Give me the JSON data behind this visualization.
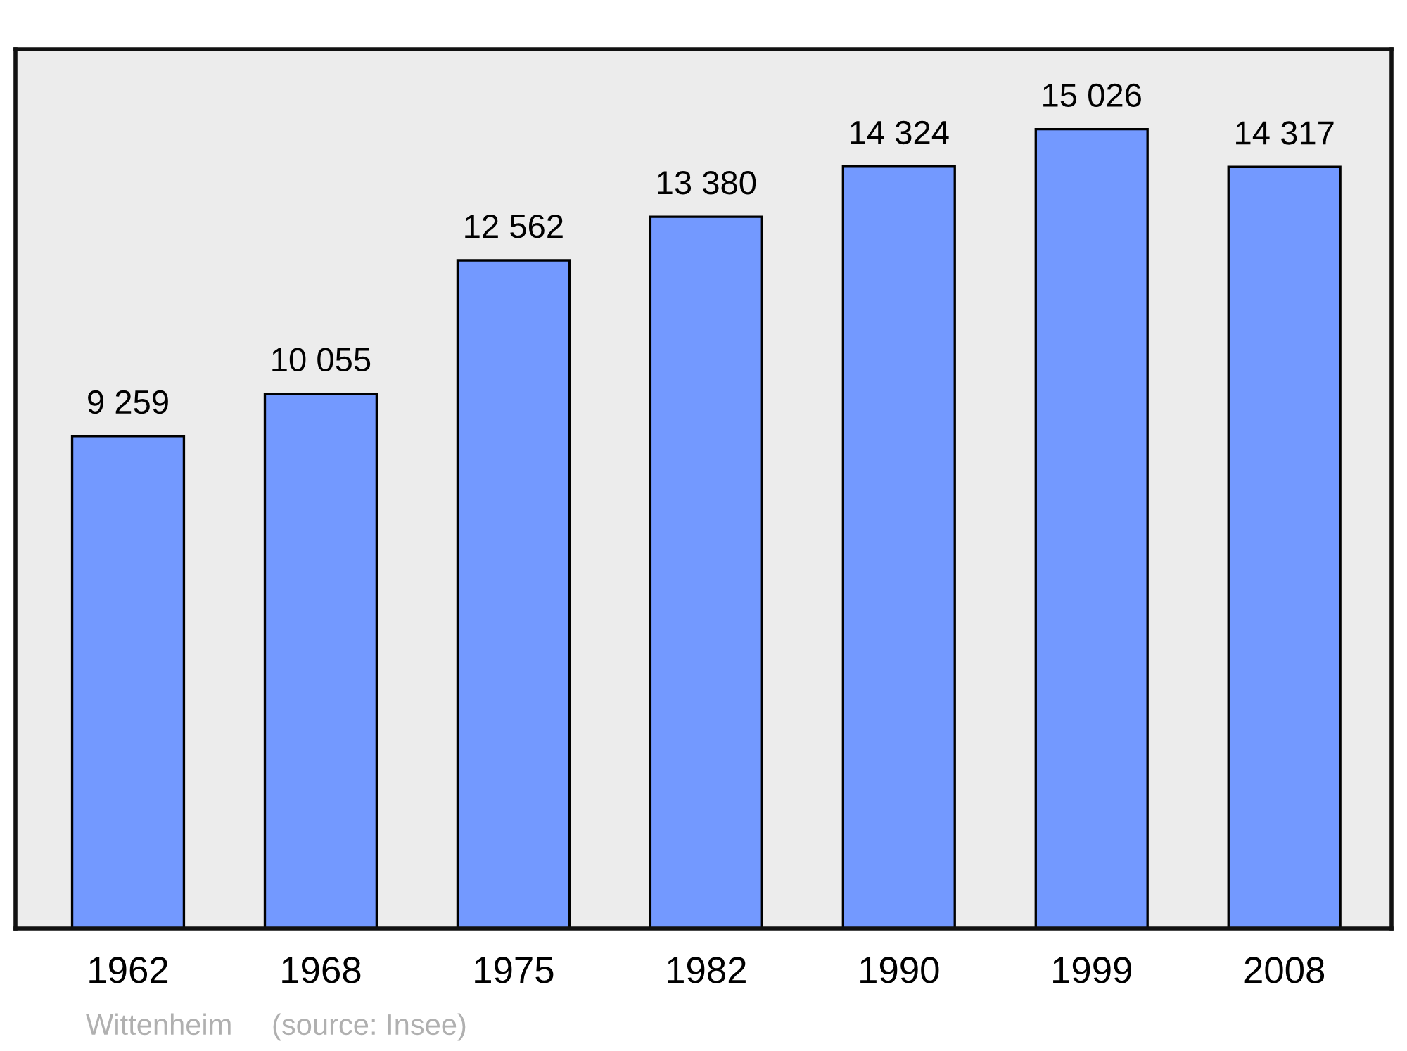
{
  "chart_data": {
    "type": "bar",
    "categories": [
      "1962",
      "1968",
      "1975",
      "1982",
      "1990",
      "1999",
      "2008"
    ],
    "values": [
      9259,
      10055,
      12562,
      13380,
      14324,
      15026,
      14317
    ],
    "value_labels": [
      "9 259",
      "10 055",
      "12 562",
      "13 380",
      "14 324",
      "15 026",
      "14 317"
    ],
    "color": "#7399ff",
    "annotations": [
      "Wittenheim",
      "(source: Insee)"
    ],
    "grid": false,
    "legend": false
  }
}
